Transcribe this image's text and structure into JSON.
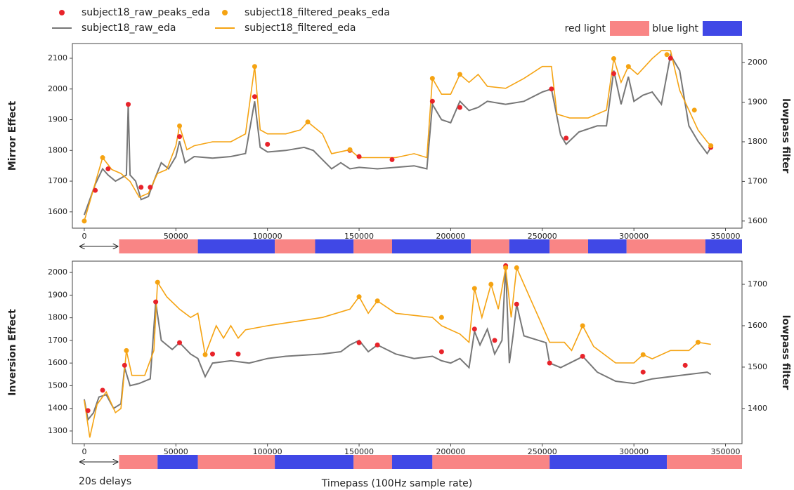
{
  "chart_data": [
    {
      "type": "line",
      "ylabel": "Mirror Effect",
      "y2label": "lowpass filter",
      "xlim": [
        -6500,
        359000
      ],
      "xticks": [
        0,
        50000,
        100000,
        150000,
        200000,
        250000,
        300000,
        350000
      ],
      "ylim": [
        1547,
        2148
      ],
      "yticks": [
        1600,
        1700,
        1800,
        1900,
        2000,
        2100
      ],
      "y2lim": [
        1582,
        2048
      ],
      "y2ticks": [
        1600,
        1700,
        1800,
        1900,
        2000
      ],
      "series": [
        {
          "name": "subject18_raw_eda",
          "type": "line",
          "color": "#777777",
          "x": [
            0,
            3000,
            6000,
            10000,
            13000,
            17000,
            20000,
            23000,
            24000,
            25000,
            28000,
            31000,
            35000,
            38000,
            42000,
            46000,
            50000,
            52000,
            55000,
            60000,
            70000,
            80000,
            88000,
            93000,
            96000,
            100000,
            110000,
            120000,
            125000,
            130000,
            135000,
            140000,
            145000,
            150000,
            160000,
            170000,
            180000,
            187000,
            190000,
            195000,
            200000,
            205000,
            210000,
            215000,
            220000,
            230000,
            240000,
            250000,
            255000,
            260000,
            263000,
            270000,
            280000,
            285000,
            289000,
            293000,
            297000,
            300000,
            305000,
            310000,
            315000,
            320000,
            325000,
            330000,
            335000,
            340000,
            342000
          ],
          "values": [
            1590,
            1640,
            1690,
            1740,
            1720,
            1700,
            1710,
            1720,
            1950,
            1720,
            1700,
            1640,
            1650,
            1700,
            1760,
            1740,
            1780,
            1830,
            1760,
            1780,
            1775,
            1780,
            1790,
            1960,
            1810,
            1795,
            1800,
            1810,
            1800,
            1770,
            1740,
            1760,
            1740,
            1745,
            1740,
            1745,
            1750,
            1740,
            1950,
            1900,
            1890,
            1960,
            1930,
            1940,
            1960,
            1950,
            1960,
            1990,
            2000,
            1850,
            1820,
            1860,
            1880,
            1880,
            2060,
            1950,
            2040,
            1960,
            1980,
            1990,
            1950,
            2110,
            2060,
            1880,
            1830,
            1790,
            1810
          ]
        },
        {
          "name": "subject18_filtered_eda",
          "type": "line",
          "axis": "y2",
          "color": "#f5a312",
          "x": [
            0,
            5000,
            10000,
            15000,
            20000,
            25000,
            30000,
            35000,
            40000,
            45000,
            50000,
            52000,
            56000,
            60000,
            70000,
            80000,
            88000,
            93000,
            96000,
            100000,
            110000,
            118000,
            122000,
            130000,
            135000,
            145000,
            150000,
            160000,
            170000,
            180000,
            187000,
            190000,
            195000,
            200000,
            205000,
            210000,
            215000,
            220000,
            230000,
            240000,
            250000,
            255000,
            258000,
            265000,
            275000,
            285000,
            289000,
            293000,
            297000,
            302000,
            310000,
            315000,
            320000,
            325000,
            330000,
            335000,
            340000,
            342000
          ],
          "values": [
            1600,
            1680,
            1760,
            1730,
            1720,
            1700,
            1660,
            1670,
            1720,
            1730,
            1790,
            1840,
            1780,
            1790,
            1800,
            1800,
            1820,
            1990,
            1830,
            1820,
            1820,
            1830,
            1850,
            1820,
            1770,
            1780,
            1760,
            1760,
            1760,
            1770,
            1760,
            1960,
            1920,
            1920,
            1970,
            1950,
            1970,
            1940,
            1935,
            1960,
            1990,
            1990,
            1870,
            1860,
            1860,
            1880,
            2010,
            1950,
            1990,
            1970,
            2010,
            2030,
            2030,
            1930,
            1880,
            1830,
            1800,
            1790
          ]
        },
        {
          "name": "subject18_raw_peaks_eda",
          "type": "scatter",
          "color": "#e8232a",
          "x": [
            6000,
            13000,
            24000,
            31000,
            36000,
            52000,
            93000,
            100000,
            145000,
            150000,
            168000,
            190000,
            205000,
            255000,
            263000,
            289000,
            320000,
            342000
          ],
          "values": [
            1670,
            1740,
            1950,
            1680,
            1680,
            1845,
            1975,
            1820,
            1800,
            1780,
            1770,
            1960,
            1940,
            2000,
            1840,
            2050,
            2100,
            1810
          ]
        },
        {
          "name": "subject18_filtered_peaks_eda",
          "type": "scatter",
          "axis": "y2",
          "color": "#f5a312",
          "x": [
            0,
            10000,
            52000,
            93000,
            122000,
            145000,
            190000,
            205000,
            289000,
            297000,
            318000,
            333000,
            342000
          ],
          "values": [
            1600,
            1760,
            1840,
            1990,
            1850,
            1780,
            1960,
            1970,
            2010,
            1990,
            2020,
            1880,
            1790
          ]
        }
      ],
      "light_legend": [
        {
          "label": "red light",
          "color": "#f98585"
        },
        {
          "label": "blue light",
          "color": "#4048e6"
        }
      ],
      "light_segments": [
        {
          "start": 19000,
          "end": 62000,
          "color": "#f98585"
        },
        {
          "start": 62000,
          "end": 104000,
          "color": "#4048e6"
        },
        {
          "start": 104000,
          "end": 126000,
          "color": "#f98585"
        },
        {
          "start": 126000,
          "end": 147000,
          "color": "#4048e6"
        },
        {
          "start": 147000,
          "end": 168000,
          "color": "#f98585"
        },
        {
          "start": 168000,
          "end": 211000,
          "color": "#4048e6"
        },
        {
          "start": 211000,
          "end": 232000,
          "color": "#f98585"
        },
        {
          "start": 232000,
          "end": 254000,
          "color": "#4048e6"
        },
        {
          "start": 254000,
          "end": 275000,
          "color": "#f98585"
        },
        {
          "start": 275000,
          "end": 296000,
          "color": "#4048e6"
        },
        {
          "start": 296000,
          "end": 339000,
          "color": "#f98585"
        },
        {
          "start": 339000,
          "end": 359000,
          "color": "#4048e6"
        }
      ]
    },
    {
      "type": "line",
      "ylabel": "Inversion Effect",
      "y2label": "lowpass filter",
      "xlabel": "Timepass (100Hz sample rate)",
      "annotation": "20s delays",
      "xlim": [
        -6500,
        359000
      ],
      "xticks": [
        0,
        50000,
        100000,
        150000,
        200000,
        250000,
        300000,
        350000
      ],
      "ylim": [
        1244,
        2050
      ],
      "yticks": [
        1300,
        1400,
        1500,
        1600,
        1700,
        1800,
        1900,
        2000
      ],
      "y2lim": [
        1315,
        1756
      ],
      "y2ticks": [
        1400,
        1500,
        1600,
        1700
      ],
      "series": [
        {
          "type": "line",
          "color": "#777777",
          "x": [
            0,
            2000,
            5000,
            8000,
            12000,
            16000,
            20000,
            22000,
            25000,
            30000,
            36000,
            39000,
            42000,
            48000,
            52000,
            58000,
            62000,
            66000,
            70000,
            80000,
            90000,
            100000,
            110000,
            120000,
            130000,
            140000,
            145000,
            150000,
            155000,
            160000,
            170000,
            180000,
            190000,
            195000,
            200000,
            205000,
            210000,
            213000,
            216000,
            220000,
            224000,
            228000,
            230000,
            232000,
            234000,
            236000,
            240000,
            248000,
            252000,
            254000,
            260000,
            270000,
            272000,
            280000,
            290000,
            300000,
            310000,
            320000,
            330000,
            340000,
            342000
          ],
          "values": [
            1440,
            1350,
            1380,
            1450,
            1460,
            1400,
            1420,
            1580,
            1500,
            1510,
            1530,
            1870,
            1700,
            1660,
            1690,
            1640,
            1620,
            1540,
            1600,
            1610,
            1600,
            1620,
            1630,
            1635,
            1640,
            1650,
            1680,
            1700,
            1650,
            1680,
            1640,
            1620,
            1630,
            1610,
            1600,
            1620,
            1580,
            1740,
            1680,
            1750,
            1640,
            1700,
            2030,
            1600,
            1720,
            1860,
            1720,
            1700,
            1690,
            1600,
            1580,
            1620,
            1630,
            1560,
            1520,
            1510,
            1530,
            1540,
            1550,
            1560,
            1550
          ]
        },
        {
          "type": "line",
          "axis": "y2",
          "color": "#f5a312",
          "x": [
            0,
            3000,
            7000,
            12000,
            17000,
            20000,
            23000,
            26000,
            33000,
            38000,
            40000,
            45000,
            52000,
            58000,
            62000,
            66000,
            72000,
            76000,
            80000,
            84000,
            88000,
            100000,
            115000,
            130000,
            145000,
            150000,
            155000,
            160000,
            170000,
            190000,
            195000,
            205000,
            210000,
            213000,
            217000,
            222000,
            226000,
            230000,
            233000,
            236000,
            240000,
            248000,
            254000,
            262000,
            266000,
            272000,
            278000,
            290000,
            300000,
            305000,
            310000,
            320000,
            330000,
            335000,
            342000
          ],
          "values": [
            1420,
            1330,
            1410,
            1440,
            1390,
            1400,
            1540,
            1480,
            1480,
            1540,
            1705,
            1670,
            1640,
            1620,
            1630,
            1530,
            1600,
            1570,
            1600,
            1570,
            1590,
            1600,
            1610,
            1620,
            1640,
            1670,
            1630,
            1660,
            1630,
            1620,
            1600,
            1580,
            1560,
            1690,
            1620,
            1700,
            1640,
            1740,
            1620,
            1740,
            1700,
            1620,
            1560,
            1560,
            1540,
            1600,
            1550,
            1510,
            1510,
            1530,
            1520,
            1540,
            1540,
            1560,
            1555
          ]
        },
        {
          "type": "scatter",
          "color": "#e8232a",
          "x": [
            2000,
            10000,
            22000,
            39000,
            52000,
            70000,
            84000,
            150000,
            160000,
            195000,
            213000,
            224000,
            230000,
            236000,
            254000,
            272000,
            305000,
            328000
          ],
          "values": [
            1390,
            1480,
            1590,
            1870,
            1690,
            1640,
            1640,
            1690,
            1680,
            1650,
            1750,
            1700,
            2030,
            1860,
            1600,
            1630,
            1560,
            1590
          ]
        },
        {
          "type": "scatter",
          "axis": "y2",
          "color": "#f5a312",
          "x": [
            23000,
            40000,
            66000,
            150000,
            160000,
            195000,
            213000,
            222000,
            230000,
            236000,
            272000,
            305000,
            335000
          ],
          "values": [
            1540,
            1705,
            1530,
            1670,
            1660,
            1620,
            1690,
            1700,
            1740,
            1740,
            1600,
            1530,
            1560
          ]
        }
      ],
      "light_segments": [
        {
          "start": 19000,
          "end": 40000,
          "color": "#f98585"
        },
        {
          "start": 40000,
          "end": 62000,
          "color": "#4048e6"
        },
        {
          "start": 62000,
          "end": 104000,
          "color": "#f98585"
        },
        {
          "start": 104000,
          "end": 147000,
          "color": "#4048e6"
        },
        {
          "start": 147000,
          "end": 168000,
          "color": "#f98585"
        },
        {
          "start": 168000,
          "end": 190000,
          "color": "#4048e6"
        },
        {
          "start": 190000,
          "end": 254000,
          "color": "#f98585"
        },
        {
          "start": 254000,
          "end": 318000,
          "color": "#4048e6"
        },
        {
          "start": 318000,
          "end": 359000,
          "color": "#f98585"
        }
      ]
    }
  ]
}
